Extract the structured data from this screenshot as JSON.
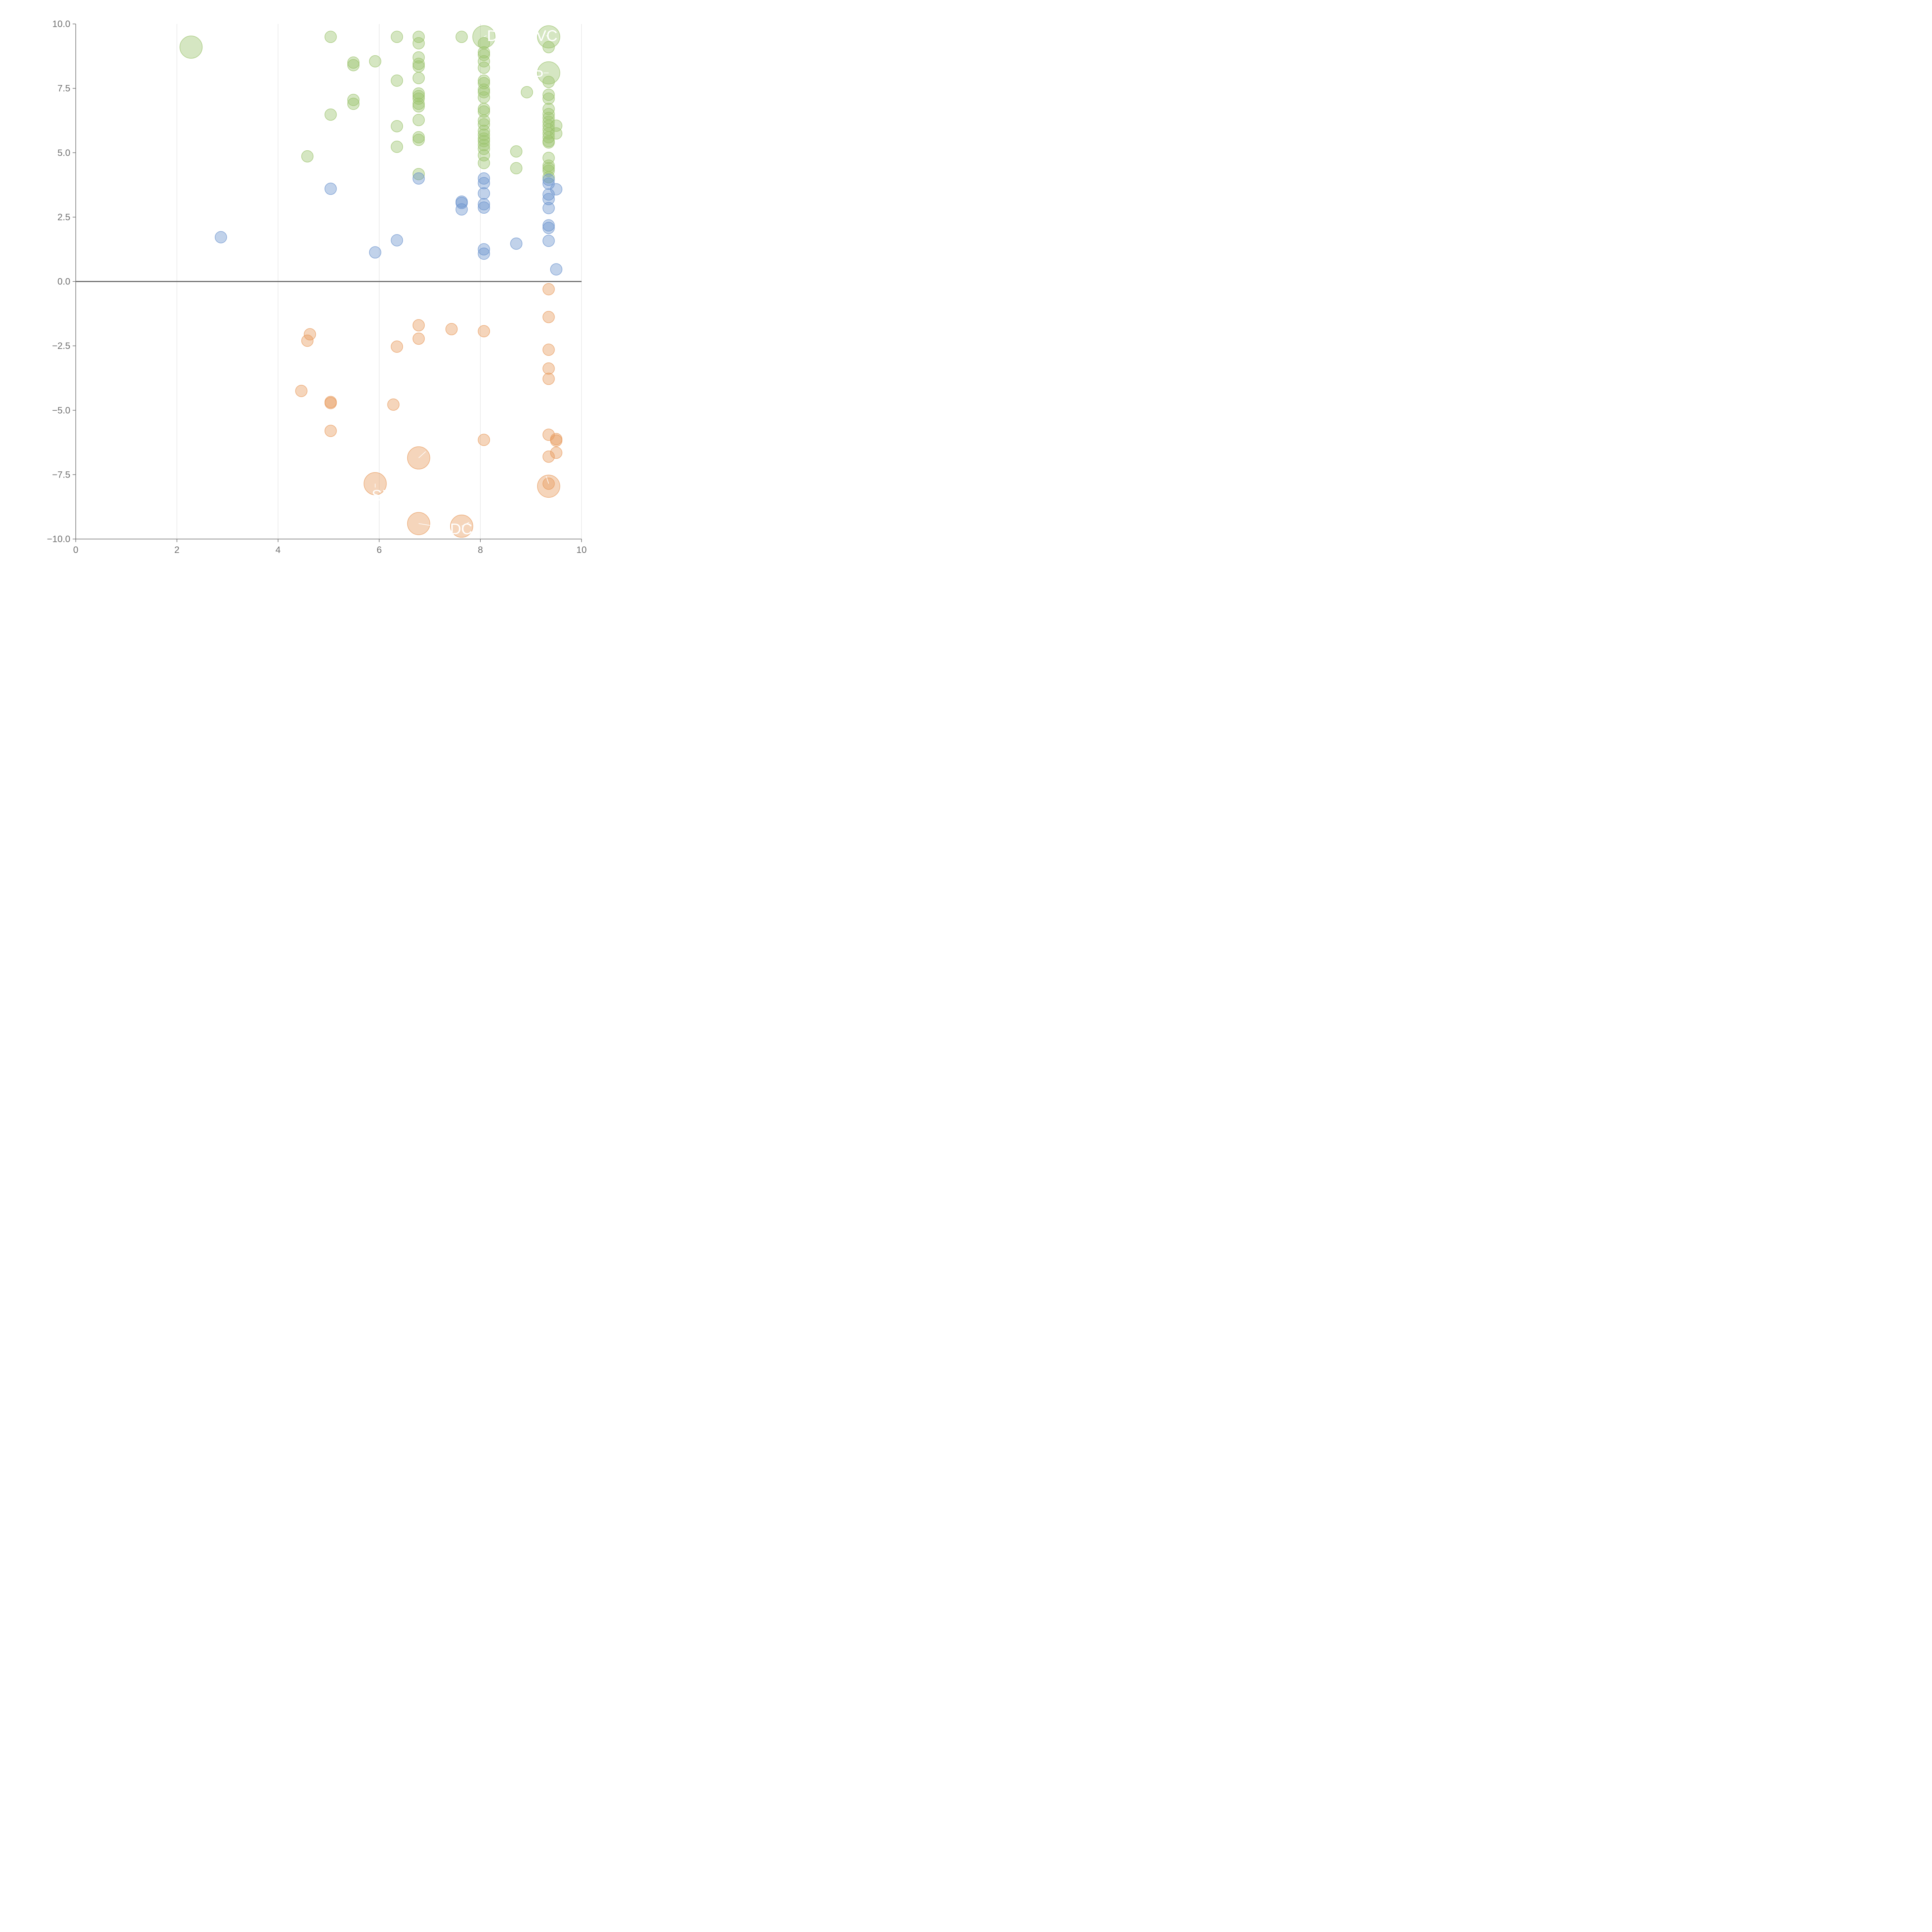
{
  "chart_data": {
    "type": "scatter",
    "title": "",
    "xlabel": "",
    "ylabel": "",
    "xlim": [
      0,
      10
    ],
    "ylim": [
      -10,
      10
    ],
    "x_ticks": [
      "0",
      "2",
      "4",
      "6",
      "8",
      "10"
    ],
    "y_ticks": [
      "10.0",
      "7.5",
      "5.0",
      "2.5",
      "0.0",
      "−2.5",
      "−5.0",
      "−7.5",
      "−10.0"
    ],
    "grid": {
      "x": true,
      "y": false
    },
    "zero_line": true,
    "colors": {
      "green": "#9cc36e",
      "blue": "#6b93cd",
      "orange": "#e89b5e",
      "axis": "#6f6f6f",
      "grid": "#dddddd"
    },
    "series": [
      {
        "color": "green",
        "points": [
          [
            2.28,
            9.1,
            3
          ],
          [
            5.04,
            9.5,
            1
          ],
          [
            6.35,
            9.5,
            1
          ],
          [
            6.78,
            9.5,
            1
          ],
          [
            7.63,
            9.5,
            1
          ],
          [
            8.07,
            9.5,
            3
          ],
          [
            9.35,
            9.5,
            3
          ],
          [
            6.78,
            9.25,
            1
          ],
          [
            8.07,
            9.25,
            1
          ],
          [
            9.35,
            9.1,
            1
          ],
          [
            5.49,
            8.5,
            1
          ],
          [
            5.49,
            8.4,
            1
          ],
          [
            5.92,
            8.55,
            1
          ],
          [
            6.78,
            8.7,
            1
          ],
          [
            6.78,
            8.45,
            1
          ],
          [
            6.78,
            8.35,
            1
          ],
          [
            8.07,
            8.9,
            1
          ],
          [
            8.07,
            8.8,
            1
          ],
          [
            8.07,
            8.55,
            1
          ],
          [
            8.07,
            8.3,
            1
          ],
          [
            9.35,
            8.1,
            3
          ],
          [
            6.35,
            7.8,
            1
          ],
          [
            6.78,
            7.9,
            1
          ],
          [
            8.07,
            7.8,
            1
          ],
          [
            8.07,
            7.7,
            1
          ],
          [
            9.35,
            7.75,
            1
          ],
          [
            6.78,
            7.3,
            1
          ],
          [
            6.78,
            7.2,
            1
          ],
          [
            6.78,
            7.1,
            1
          ],
          [
            8.07,
            7.45,
            1
          ],
          [
            8.07,
            7.35,
            1
          ],
          [
            8.07,
            7.15,
            1
          ],
          [
            8.92,
            7.35,
            1
          ],
          [
            9.35,
            7.25,
            1
          ],
          [
            9.35,
            7.1,
            1
          ],
          [
            5.49,
            7.05,
            1
          ],
          [
            5.49,
            6.9,
            1
          ],
          [
            6.78,
            6.9,
            1
          ],
          [
            6.78,
            6.8,
            1
          ],
          [
            8.07,
            6.7,
            1
          ],
          [
            8.07,
            6.6,
            1
          ],
          [
            9.35,
            6.7,
            1
          ],
          [
            9.35,
            6.5,
            1
          ],
          [
            9.35,
            6.35,
            1
          ],
          [
            5.04,
            6.48,
            1
          ],
          [
            6.35,
            6.03,
            1
          ],
          [
            6.78,
            6.27,
            1
          ],
          [
            8.07,
            6.25,
            1
          ],
          [
            8.07,
            6.1,
            1
          ],
          [
            9.35,
            6.2,
            1
          ],
          [
            9.35,
            6.05,
            1
          ],
          [
            9.35,
            5.9,
            1
          ],
          [
            9.35,
            5.75,
            1
          ],
          [
            9.35,
            5.6,
            1
          ],
          [
            9.5,
            6.05,
            1
          ],
          [
            9.5,
            5.75,
            1
          ],
          [
            6.78,
            5.6,
            1
          ],
          [
            6.78,
            5.5,
            1
          ],
          [
            8.07,
            5.85,
            1
          ],
          [
            8.07,
            5.7,
            1
          ],
          [
            8.07,
            5.55,
            1
          ],
          [
            8.07,
            5.45,
            1
          ],
          [
            8.07,
            5.3,
            1
          ],
          [
            8.07,
            5.15,
            1
          ],
          [
            9.35,
            5.45,
            1
          ],
          [
            9.35,
            5.4,
            1
          ],
          [
            6.35,
            5.23,
            1
          ],
          [
            8.71,
            5.05,
            1
          ],
          [
            4.58,
            4.86,
            1
          ],
          [
            8.07,
            4.9,
            1
          ],
          [
            8.07,
            4.6,
            1
          ],
          [
            9.35,
            4.8,
            1
          ],
          [
            8.71,
            4.4,
            1
          ],
          [
            9.35,
            4.5,
            1
          ],
          [
            9.35,
            4.4,
            1
          ],
          [
            9.35,
            4.3,
            1
          ],
          [
            6.78,
            4.17,
            1
          ],
          [
            9.35,
            4.05,
            1
          ]
        ]
      },
      {
        "color": "blue",
        "points": [
          [
            6.78,
            4.0,
            1
          ],
          [
            8.07,
            4.0,
            1
          ],
          [
            8.07,
            3.82,
            1
          ],
          [
            9.35,
            3.95,
            1
          ],
          [
            9.35,
            3.8,
            1
          ],
          [
            5.04,
            3.6,
            1
          ],
          [
            9.5,
            3.58,
            1
          ],
          [
            8.07,
            3.42,
            1
          ],
          [
            9.35,
            3.38,
            1
          ],
          [
            9.35,
            3.2,
            1
          ],
          [
            7.63,
            3.1,
            1
          ],
          [
            7.63,
            3.05,
            1
          ],
          [
            8.07,
            3.0,
            1
          ],
          [
            8.07,
            2.87,
            1
          ],
          [
            9.35,
            2.85,
            1
          ],
          [
            7.63,
            2.8,
            1
          ],
          [
            9.35,
            2.18,
            1
          ],
          [
            9.35,
            2.08,
            1
          ],
          [
            2.87,
            1.72,
            1
          ],
          [
            6.35,
            1.6,
            1
          ],
          [
            9.35,
            1.58,
            1
          ],
          [
            8.71,
            1.47,
            1
          ],
          [
            8.07,
            1.25,
            1
          ],
          [
            5.92,
            1.13,
            1
          ],
          [
            8.07,
            1.08,
            1
          ],
          [
            9.5,
            0.47,
            1
          ]
        ]
      },
      {
        "color": "orange",
        "points": [
          [
            9.35,
            -0.3,
            1
          ],
          [
            9.35,
            -1.38,
            1
          ],
          [
            6.78,
            -1.7,
            1
          ],
          [
            7.43,
            -1.85,
            1
          ],
          [
            8.07,
            -1.93,
            1
          ],
          [
            4.63,
            -2.05,
            1
          ],
          [
            6.78,
            -2.22,
            1
          ],
          [
            4.58,
            -2.3,
            1
          ],
          [
            6.35,
            -2.53,
            1
          ],
          [
            9.35,
            -2.65,
            1
          ],
          [
            9.35,
            -3.38,
            1
          ],
          [
            9.35,
            -3.78,
            1
          ],
          [
            4.46,
            -4.25,
            1
          ],
          [
            5.04,
            -4.68,
            1
          ],
          [
            5.04,
            -4.72,
            1
          ],
          [
            6.28,
            -4.78,
            1
          ],
          [
            5.04,
            -5.8,
            1
          ],
          [
            9.35,
            -5.95,
            1
          ],
          [
            9.5,
            -6.12,
            1
          ],
          [
            9.5,
            -6.18,
            1
          ],
          [
            8.07,
            -6.15,
            1
          ],
          [
            9.5,
            -6.65,
            1
          ],
          [
            9.35,
            -6.8,
            1
          ],
          [
            6.78,
            -6.85,
            3
          ],
          [
            5.92,
            -7.85,
            3
          ],
          [
            9.35,
            -7.85,
            1
          ],
          [
            9.35,
            -7.95,
            3
          ],
          [
            6.78,
            -9.4,
            3
          ],
          [
            7.63,
            -9.5,
            3
          ]
        ]
      }
    ],
    "annotations": [
      {
        "text": "DC",
        "x": 8.13,
        "y": 9.55,
        "anchor": "start",
        "lx1": 8.07,
        "ly1": 9.5,
        "lx2": 8.12,
        "ly2": 9.55
      },
      {
        "text": "VC",
        "x": 9.1,
        "y": 9.55,
        "anchor": "start",
        "lx1": 9.35,
        "ly1": 9.5,
        "lx2": 9.3,
        "ly2": 9.55
      },
      {
        "text": "P",
        "x": 9.25,
        "y": 8.0,
        "anchor": "end",
        "lx1": 9.35,
        "ly1": 8.1,
        "lx2": 9.25,
        "ly2": 8.1
      },
      {
        "text": "SI",
        "x": 5.85,
        "y": -8.3,
        "anchor": "start",
        "lx1": 5.92,
        "ly1": -7.85,
        "lx2": 5.92,
        "ly2": -8.0
      },
      {
        "text": "DC",
        "x": 7.4,
        "y": -9.6,
        "anchor": "start",
        "lx1": 6.78,
        "ly1": -9.4,
        "lx2": 7.1,
        "ly2": -9.5
      },
      {
        "text": "",
        "x": 0,
        "y": 0,
        "anchor": "start",
        "lx1": 6.78,
        "ly1": -6.85,
        "lx2": 6.92,
        "ly2": -6.6
      },
      {
        "text": "",
        "x": 0,
        "y": 0,
        "anchor": "start",
        "lx1": 9.35,
        "ly1": -7.85,
        "lx2": 9.3,
        "ly2": -7.55
      },
      {
        "text": "",
        "x": 0,
        "y": 0,
        "anchor": "start",
        "lx1": 7.63,
        "ly1": -9.5,
        "lx2": 7.78,
        "ly2": -9.35
      }
    ]
  }
}
